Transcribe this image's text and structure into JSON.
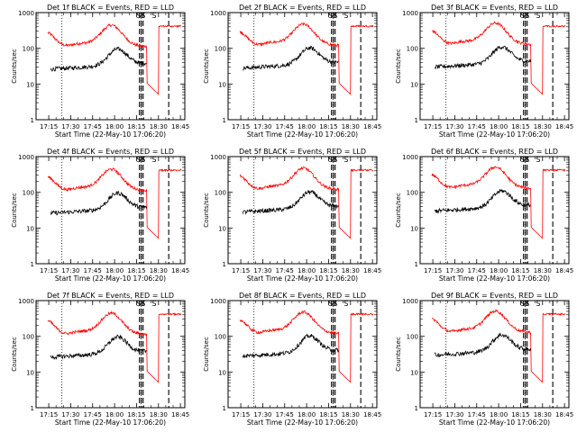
{
  "chart_data": [
    {
      "type": "line",
      "title": "Det 1f BLACK = Events, RED = LLD",
      "xlabel": "Start Time (22-May-10 17:06:20)",
      "ylabel": "Counts/sec",
      "x_tick_labels": [
        "17:15",
        "17:30",
        "17:45",
        "18:00",
        "18:15",
        "18:30",
        "18:45"
      ],
      "y_tick_labels": [
        "1",
        "10",
        "100",
        "1000"
      ],
      "y_scale": "log",
      "ylim": [
        1,
        1000
      ],
      "xlim": [
        "17:06:20",
        "18:48"
      ],
      "event_markers": [
        "SS",
        "S"
      ],
      "series": [
        {
          "name": "RED = LLD",
          "color": "#ff0000"
        },
        {
          "name": "BLACK = Events",
          "color": "#000000"
        }
      ]
    },
    {
      "type": "line",
      "title": "Det 2f BLACK = Events, RED = LLD",
      "xlabel": "Start Time (22-May-10 17:06:20)",
      "ylabel": "Counts/sec",
      "x_tick_labels": [
        "17:15",
        "17:30",
        "17:45",
        "18:00",
        "18:15",
        "18:30",
        "18:45"
      ],
      "y_tick_labels": [
        "1",
        "10",
        "100",
        "1000"
      ],
      "y_scale": "log",
      "ylim": [
        1,
        1000
      ],
      "xlim": [
        "17:06:20",
        "18:48"
      ],
      "event_markers": [
        "SS",
        "S"
      ],
      "series": [
        {
          "name": "RED = LLD",
          "color": "#ff0000"
        },
        {
          "name": "BLACK = Events",
          "color": "#000000"
        }
      ]
    },
    {
      "type": "line",
      "title": "Det 3f BLACK = Events, RED = LLD",
      "xlabel": "Start Time (22-May-10 17:06:20)",
      "ylabel": "Counts/sec",
      "x_tick_labels": [
        "17:15",
        "17:30",
        "17:45",
        "18:00",
        "18:15",
        "18:30",
        "18:45"
      ],
      "y_tick_labels": [
        "1",
        "10",
        "100",
        "1000"
      ],
      "y_scale": "log",
      "ylim": [
        1,
        1000
      ],
      "xlim": [
        "17:06:20",
        "18:48"
      ],
      "event_markers": [
        "SS",
        "S"
      ],
      "series": [
        {
          "name": "RED = LLD",
          "color": "#ff0000"
        },
        {
          "name": "BLACK = Events",
          "color": "#000000"
        }
      ]
    },
    {
      "type": "line",
      "title": "Det 4f BLACK = Events, RED = LLD",
      "xlabel": "Start Time (22-May-10 17:06:20)",
      "ylabel": "Counts/sec",
      "x_tick_labels": [
        "17:15",
        "17:30",
        "17:45",
        "18:00",
        "18:15",
        "18:30",
        "18:45"
      ],
      "y_tick_labels": [
        "1",
        "10",
        "100",
        "1000"
      ],
      "y_scale": "log",
      "ylim": [
        1,
        1000
      ],
      "xlim": [
        "17:06:20",
        "18:48"
      ],
      "event_markers": [
        "SS",
        "S"
      ],
      "series": [
        {
          "name": "RED = LLD",
          "color": "#ff0000"
        },
        {
          "name": "BLACK = Events",
          "color": "#000000"
        }
      ]
    },
    {
      "type": "line",
      "title": "Det 5f BLACK = Events, RED = LLD",
      "xlabel": "Start Time (22-May-10 17:06:20)",
      "ylabel": "Counts/sec",
      "x_tick_labels": [
        "17:15",
        "17:30",
        "17:45",
        "18:00",
        "18:15",
        "18:30",
        "18:45"
      ],
      "y_tick_labels": [
        "1",
        "10",
        "100",
        "1000"
      ],
      "y_scale": "log",
      "ylim": [
        1,
        1000
      ],
      "xlim": [
        "17:06:20",
        "18:48"
      ],
      "event_markers": [
        "SS",
        "S"
      ],
      "series": [
        {
          "name": "RED = LLD",
          "color": "#ff0000"
        },
        {
          "name": "BLACK = Events",
          "color": "#000000"
        }
      ]
    },
    {
      "type": "line",
      "title": "Det 6f BLACK = Events, RED = LLD",
      "xlabel": "Start Time (22-May-10 17:06:20)",
      "ylabel": "Counts/sec",
      "x_tick_labels": [
        "17:15",
        "17:30",
        "17:45",
        "18:00",
        "18:15",
        "18:30",
        "18:45"
      ],
      "y_tick_labels": [
        "1",
        "10",
        "100",
        "1000"
      ],
      "y_scale": "log",
      "ylim": [
        1,
        1000
      ],
      "xlim": [
        "17:06:20",
        "18:48"
      ],
      "event_markers": [
        "SS",
        "S"
      ],
      "series": [
        {
          "name": "RED = LLD",
          "color": "#ff0000"
        },
        {
          "name": "BLACK = Events",
          "color": "#000000"
        }
      ]
    },
    {
      "type": "line",
      "title": "Det 7f BLACK = Events, RED = LLD",
      "xlabel": "Start Time (22-May-10 17:06:20)",
      "ylabel": "Counts/sec",
      "x_tick_labels": [
        "17:15",
        "17:30",
        "17:45",
        "18:00",
        "18:15",
        "18:30",
        "18:45"
      ],
      "y_tick_labels": [
        "1",
        "10",
        "100",
        "1000"
      ],
      "y_scale": "log",
      "ylim": [
        1,
        1000
      ],
      "xlim": [
        "17:06:20",
        "18:48"
      ],
      "event_markers": [
        "SS",
        "S"
      ],
      "series": [
        {
          "name": "RED = LLD",
          "color": "#ff0000"
        },
        {
          "name": "BLACK = Events",
          "color": "#000000"
        }
      ]
    },
    {
      "type": "line",
      "title": "Det 8f BLACK = Events, RED = LLD",
      "xlabel": "Start Time (22-May-10 17:06:20)",
      "ylabel": "Counts/sec",
      "x_tick_labels": [
        "17:15",
        "17:30",
        "17:45",
        "18:00",
        "18:15",
        "18:30",
        "18:45"
      ],
      "y_tick_labels": [
        "1",
        "10",
        "100",
        "1000"
      ],
      "y_scale": "log",
      "ylim": [
        1,
        1000
      ],
      "xlim": [
        "17:06:20",
        "18:48"
      ],
      "event_markers": [
        "SS",
        "S"
      ],
      "series": [
        {
          "name": "RED = LLD",
          "color": "#ff0000"
        },
        {
          "name": "BLACK = Events",
          "color": "#000000"
        }
      ]
    },
    {
      "type": "line",
      "title": "Det 9f BLACK = Events, RED = LLD",
      "xlabel": "Start Time (22-May-10 17:06:20)",
      "ylabel": "Counts/sec",
      "x_tick_labels": [
        "17:15",
        "17:30",
        "17:45",
        "18:00",
        "18:15",
        "18:30",
        "18:45"
      ],
      "y_tick_labels": [
        "1",
        "10",
        "100",
        "1000"
      ],
      "y_scale": "log",
      "ylim": [
        1,
        1000
      ],
      "xlim": [
        "17:06:20",
        "18:48"
      ],
      "event_markers": [
        "SS",
        "S"
      ],
      "series": [
        {
          "name": "RED = LLD",
          "color": "#ff0000"
        },
        {
          "name": "BLACK = Events",
          "color": "#000000"
        }
      ]
    }
  ]
}
